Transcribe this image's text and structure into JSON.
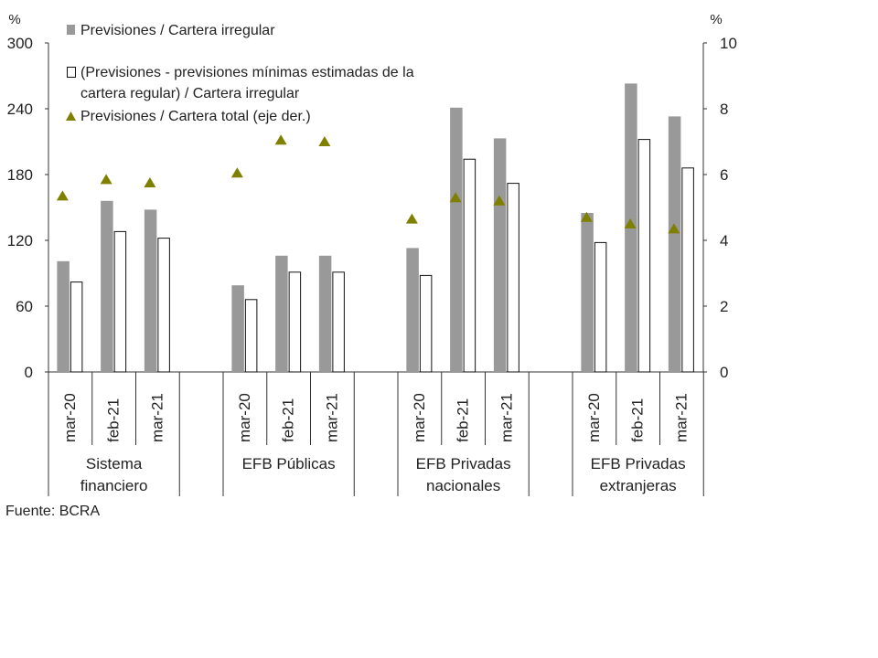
{
  "chart_data": {
    "type": "bar",
    "left_axis_unit": "%",
    "right_axis_unit": "%",
    "left_ylim": [
      0,
      300
    ],
    "left_ticks": [
      "0",
      "60",
      "120",
      "180",
      "240",
      "300"
    ],
    "right_ylim": [
      0,
      10
    ],
    "right_ticks": [
      "0",
      "2",
      "4",
      "6",
      "8",
      "10"
    ],
    "groups": [
      {
        "lines": [
          "Sistema",
          "financiero"
        ],
        "categories": [
          "mar-20",
          "feb-21",
          "mar-21"
        ]
      },
      {
        "lines": [
          "EFB Públicas"
        ],
        "categories": [
          "mar-20",
          "feb-21",
          "mar-21"
        ]
      },
      {
        "lines": [
          "EFB Privadas",
          "nacionales"
        ],
        "categories": [
          "mar-20",
          "feb-21",
          "mar-21"
        ]
      },
      {
        "lines": [
          "EFB Privadas",
          "extranjeras"
        ],
        "categories": [
          "mar-20",
          "feb-21",
          "mar-21"
        ]
      }
    ],
    "series": [
      {
        "name": "Previsiones / Cartera irregular",
        "kind": "bar",
        "axis": "left",
        "color": "#999999",
        "values": [
          101,
          156,
          148,
          79,
          106,
          106,
          113,
          241,
          213,
          145,
          263,
          233
        ]
      },
      {
        "name_lines": [
          "(Previsiones - previsiones mínimas estimadas de la",
          "cartera regular) / Cartera irregular"
        ],
        "kind": "bar",
        "axis": "left",
        "color": "#ffffff",
        "stroke": "#111111",
        "values": [
          82,
          128,
          122,
          66,
          91,
          91,
          88,
          194,
          172,
          118,
          212,
          186
        ]
      },
      {
        "name": "Previsiones / Cartera total (eje der.)",
        "kind": "marker",
        "marker": "triangle",
        "axis": "right",
        "color": "#7f7f00",
        "values": [
          5.35,
          5.85,
          5.75,
          6.05,
          7.05,
          7.0,
          4.65,
          5.3,
          5.2,
          4.7,
          4.5,
          4.35
        ]
      }
    ],
    "source": "Fuente: BCRA"
  }
}
